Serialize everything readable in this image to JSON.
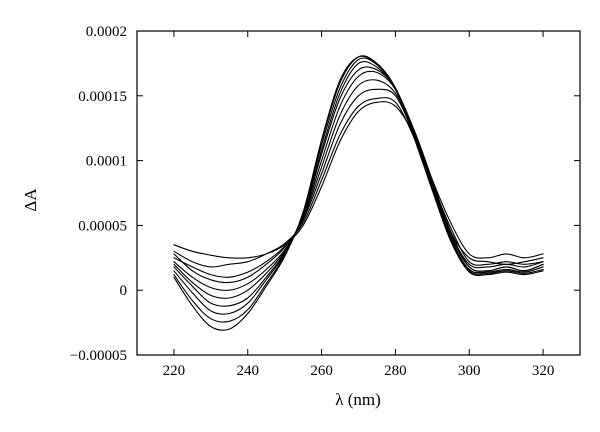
{
  "chart_data": {
    "type": "line",
    "xlabel": "λ (nm)",
    "ylabel": "ΔA",
    "xlim": [
      210,
      330
    ],
    "ylim": [
      -5e-05,
      0.0002
    ],
    "x_ticks": [
      220,
      240,
      260,
      280,
      300,
      320
    ],
    "x_tick_labels": [
      "220",
      "240",
      "260",
      "280",
      "300",
      "320"
    ],
    "y_ticks": [
      -5e-05,
      0,
      5e-05,
      0.0001,
      0.00015,
      0.0002
    ],
    "y_tick_labels": [
      "−0.00005",
      "0",
      "0.00005",
      "0.0001",
      "0.00015",
      "0.0002"
    ],
    "grid": false,
    "legend": "none",
    "line_color": "#000000",
    "x": [
      220,
      225,
      230,
      235,
      240,
      245,
      250,
      255,
      260,
      265,
      270,
      275,
      280,
      285,
      290,
      295,
      300,
      305,
      310,
      315,
      320
    ],
    "series": [
      {
        "values": [
          3.5e-05,
          3e-05,
          2.7e-05,
          2.5e-05,
          2.5e-05,
          2.8e-05,
          3.5e-05,
          5e-05,
          8e-05,
          0.000115,
          0.000138,
          0.000145,
          0.000142,
          0.00012,
          8.5e-05,
          5.2e-05,
          2.8e-05,
          2.5e-05,
          2.8e-05,
          2.5e-05,
          2.8e-05
        ]
      },
      {
        "values": [
          3e-05,
          2.2e-05,
          1.8e-05,
          2e-05,
          2.2e-05,
          2.8e-05,
          3.6e-05,
          5.2e-05,
          8.5e-05,
          0.00012,
          0.000142,
          0.000148,
          0.000145,
          0.000118,
          8.2e-05,
          4.8e-05,
          2.2e-05,
          2e-05,
          2.2e-05,
          2e-05,
          2.2e-05
        ]
      },
      {
        "values": [
          2.5e-05,
          1.8e-05,
          1.2e-05,
          1e-05,
          1.4e-05,
          2.2e-05,
          3.4e-05,
          5.4e-05,
          9e-05,
          0.000128,
          0.00015,
          0.000155,
          0.00015,
          0.00012,
          8.4e-05,
          4.5e-05,
          2.5e-05,
          2.2e-05,
          2e-05,
          2.2e-05,
          2.5e-05
        ]
      },
      {
        "values": [
          2.8e-05,
          1.5e-05,
          8e-06,
          6e-06,
          1e-05,
          2e-05,
          3.3e-05,
          5.5e-05,
          9.5e-05,
          0.000135,
          0.000158,
          0.000162,
          0.000152,
          0.000122,
          8.4e-05,
          4.5e-05,
          1.8e-05,
          1.5e-05,
          1.8e-05,
          1.5e-05,
          2e-05
        ]
      },
      {
        "values": [
          2.2e-05,
          1e-05,
          2e-06,
          0.0,
          5e-06,
          1.6e-05,
          3.1e-05,
          5.6e-05,
          0.0001,
          0.000142,
          0.000165,
          0.000168,
          0.000155,
          0.000124,
          8.5e-05,
          4.4e-05,
          2e-05,
          1.8e-05,
          2e-05,
          1.8e-05,
          2.2e-05
        ]
      },
      {
        "values": [
          2e-05,
          6e-06,
          -4e-06,
          -6e-06,
          0.0,
          1.3e-05,
          3e-05,
          5.7e-05,
          0.000105,
          0.000148,
          0.00017,
          0.00017,
          0.000156,
          0.000122,
          8.2e-05,
          4.2e-05,
          1.8e-05,
          1.5e-05,
          1.8e-05,
          1.5e-05,
          2e-05
        ]
      },
      {
        "values": [
          1.8e-05,
          3e-06,
          -1e-05,
          -1.2e-05,
          -6e-06,
          1e-05,
          2.9e-05,
          5.8e-05,
          0.000108,
          0.000152,
          0.000175,
          0.000172,
          0.000155,
          0.00012,
          8e-05,
          4e-05,
          1.6e-05,
          1.4e-05,
          1.6e-05,
          1.4e-05,
          1.8e-05
        ]
      },
      {
        "values": [
          1.5e-05,
          -2e-06,
          -1.6e-05,
          -1.8e-05,
          -1e-05,
          8e-06,
          2.8e-05,
          5.9e-05,
          0.000112,
          0.000156,
          0.000178,
          0.000174,
          0.000156,
          0.00012,
          8e-05,
          4e-05,
          1.5e-05,
          1.3e-05,
          1.5e-05,
          1.3e-05,
          1.6e-05
        ]
      },
      {
        "values": [
          1.2e-05,
          -8e-06,
          -2.2e-05,
          -2.4e-05,
          -1.5e-05,
          5e-06,
          2.7e-05,
          6e-05,
          0.000115,
          0.00016,
          0.00018,
          0.000175,
          0.000156,
          0.000119,
          7.8e-05,
          3.8e-05,
          1.4e-05,
          1.2e-05,
          1.4e-05,
          1.2e-05,
          1.5e-05
        ]
      },
      {
        "values": [
          1e-05,
          -1.2e-05,
          -2.8e-05,
          -3e-05,
          -1.8e-05,
          3e-06,
          2.6e-05,
          6e-05,
          0.000116,
          0.000162,
          0.00018,
          0.000174,
          0.000155,
          0.000118,
          7.7e-05,
          3.8e-05,
          1.6e-05,
          1.4e-05,
          1.6e-05,
          1.4e-05,
          1.8e-05
        ]
      }
    ]
  }
}
